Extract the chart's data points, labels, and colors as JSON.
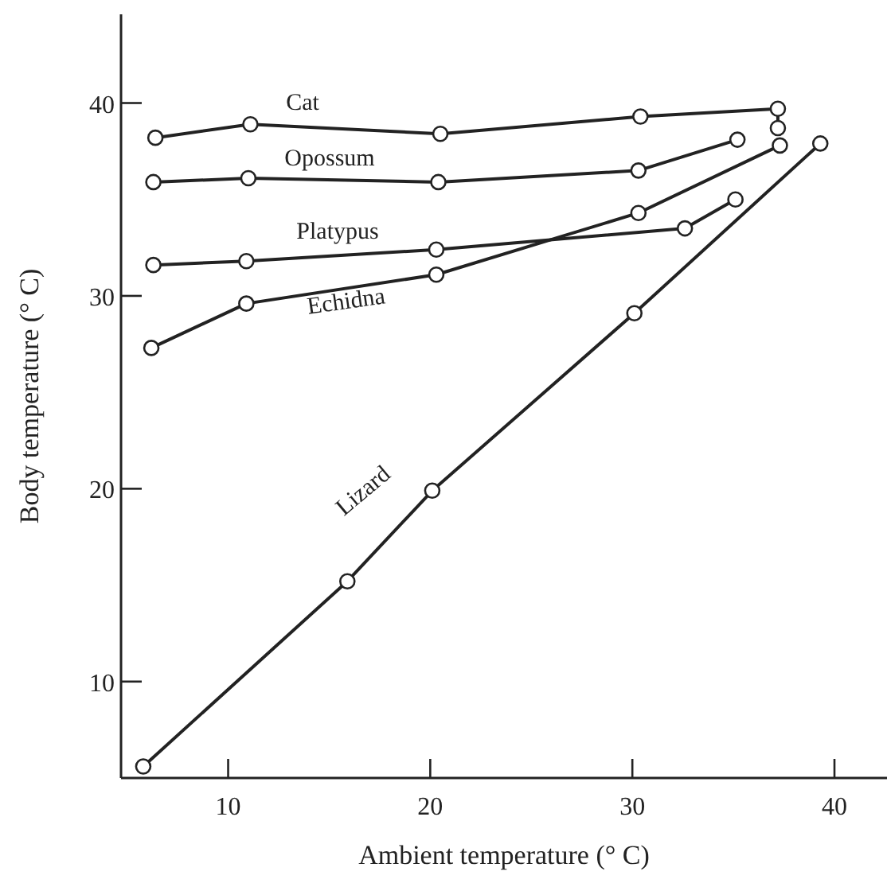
{
  "chart_data": {
    "type": "line",
    "xlabel": "Ambient temperature (° C)",
    "ylabel": "Body temperature (° C)",
    "xlim": [
      4.7,
      42.6
    ],
    "ylim": [
      5,
      44.6
    ],
    "xticks": [
      10,
      20,
      30,
      40
    ],
    "yticks": [
      10,
      20,
      30,
      40
    ],
    "grid": false,
    "legend": false,
    "marker": "circle",
    "line_style": "solid",
    "series": [
      {
        "name": "Cat",
        "color": "#222222",
        "x": [
          6.4,
          11.1,
          20.5,
          30.4,
          37.2,
          37.2
        ],
        "values": [
          38.2,
          38.9,
          38.4,
          39.3,
          39.7,
          38.7
        ]
      },
      {
        "name": "Opossum",
        "color": "#222222",
        "x": [
          6.3,
          11.0,
          20.4,
          30.3,
          35.2
        ],
        "values": [
          35.9,
          36.1,
          35.9,
          36.5,
          38.1
        ]
      },
      {
        "name": "Platypus",
        "color": "#222222",
        "x": [
          6.3,
          10.9,
          20.3,
          32.6,
          35.1
        ],
        "values": [
          31.6,
          31.8,
          32.4,
          33.5,
          35.0
        ]
      },
      {
        "name": "Echidna",
        "color": "#222222",
        "x": [
          6.2,
          10.9,
          20.3,
          30.3,
          37.3
        ],
        "values": [
          27.3,
          29.6,
          31.1,
          34.3,
          37.8
        ]
      },
      {
        "name": "Lizard",
        "color": "#222222",
        "x": [
          5.8,
          15.9,
          20.1,
          30.1,
          39.3
        ],
        "values": [
          5.6,
          15.2,
          19.9,
          29.1,
          37.9
        ]
      }
    ]
  }
}
